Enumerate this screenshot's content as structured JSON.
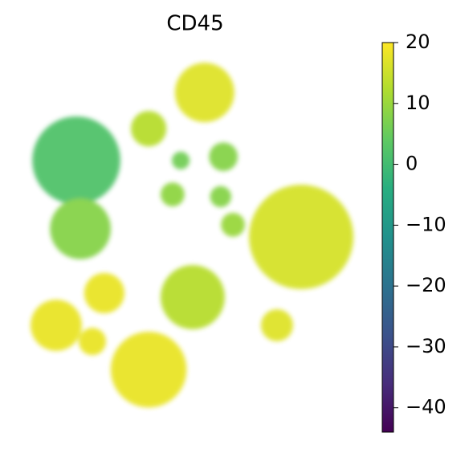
{
  "chart_data": {
    "type": "scatter",
    "title": "CD45",
    "xlim": [
      0,
      100
    ],
    "ylim": [
      0,
      100
    ],
    "series": [
      {
        "x": [
          52.9,
          36.5,
          15.3,
          16.5,
          58.4,
          45.9,
          43.5,
          57.6,
          81.2,
          61.2,
          49.4,
          23.5,
          9.4,
          36.5,
          74.1,
          20
        ],
        "y": [
          89.1,
          79.3,
          70.7,
          52.2,
          71.7,
          70.7,
          61.5,
          60.9,
          50,
          53.3,
          33.7,
          34.8,
          26.1,
          14.1,
          26.1,
          21.7
        ],
        "sizes": [
          8.7,
          5.2,
          12.9,
          8.9,
          4.2,
          2.6,
          3.5,
          3.1,
          15.3,
          3.5,
          9.4,
          5.9,
          7.5,
          11.1,
          4.7,
          4
        ],
        "colors": [
          17,
          13,
          2,
          8,
          8,
          6,
          9,
          8,
          16,
          10,
          13,
          18,
          18,
          18,
          17,
          18
        ]
      }
    ],
    "colormap": "viridis",
    "clim": [
      -44,
      20
    ],
    "cticks": [
      20,
      10,
      0,
      {
        "value": -10,
        "label": "−10"
      },
      {
        "value": -20,
        "label": "−20"
      },
      {
        "value": -30,
        "label": "−30"
      },
      {
        "value": -40,
        "label": "−40"
      }
    ]
  }
}
